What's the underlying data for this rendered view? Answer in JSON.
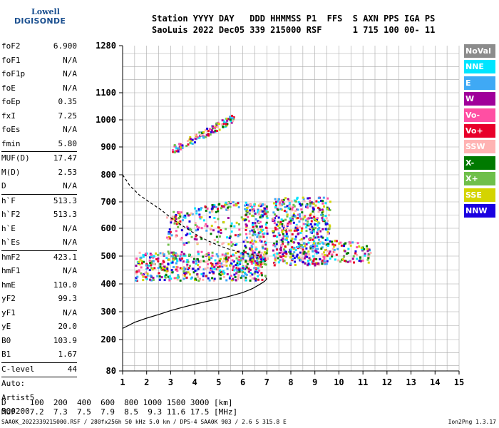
{
  "logo": {
    "line1": "Lowell",
    "line2": "DIGISONDE"
  },
  "header": {
    "line1": "Station YYYY DAY   DDD HHMMSS P1  FFS  S AXN PPS IGA PS",
    "line2": "SaoLuis 2022 Dec05 339 215000 RSF      1 715 100 00- 11"
  },
  "params_group1": [
    {
      "label": "foF2",
      "value": "6.900"
    },
    {
      "label": "foF1",
      "value": "N/A"
    },
    {
      "label": "foF1p",
      "value": "N/A"
    },
    {
      "label": "foE",
      "value": "N/A"
    },
    {
      "label": "foEp",
      "value": "0.35"
    },
    {
      "label": "fxI",
      "value": "7.25"
    },
    {
      "label": "foEs",
      "value": "N/A"
    },
    {
      "label": "fmin",
      "value": "5.80"
    }
  ],
  "params_group2": [
    {
      "label": "MUF(D)",
      "value": "17.47"
    },
    {
      "label": "M(D)",
      "value": "2.53"
    },
    {
      "label": "D",
      "value": "N/A"
    }
  ],
  "params_group3": [
    {
      "label": "h`F",
      "value": "513.3"
    },
    {
      "label": "h`F2",
      "value": "513.3"
    },
    {
      "label": "h`E",
      "value": "N/A"
    },
    {
      "label": "h`Es",
      "value": "N/A"
    }
  ],
  "params_group4": [
    {
      "label": "hmF2",
      "value": "423.1"
    },
    {
      "label": "hmF1",
      "value": "N/A"
    },
    {
      "label": "hmE",
      "value": "110.0"
    },
    {
      "label": "yF2",
      "value": "99.3"
    },
    {
      "label": "yF1",
      "value": "N/A"
    },
    {
      "label": "yE",
      "value": "20.0"
    },
    {
      "label": "B0",
      "value": "103.9"
    },
    {
      "label": "B1",
      "value": "1.67"
    }
  ],
  "params_group5": [
    {
      "label": "C-level",
      "value": "44"
    }
  ],
  "params_group6": [
    {
      "label": "Auto:",
      "value": ""
    },
    {
      "label": "Artist5",
      "value": ""
    },
    {
      "label": "500200",
      "value": ""
    }
  ],
  "legend": [
    {
      "label": "NoVal",
      "color": "#8c8c8c"
    },
    {
      "label": "NNE",
      "color": "#00e5ff"
    },
    {
      "label": "E",
      "color": "#3fa9f5"
    },
    {
      "label": "W",
      "color": "#a0009a"
    },
    {
      "label": "Vo-",
      "color": "#ff4fa3"
    },
    {
      "label": "Vo+",
      "color": "#e8002a"
    },
    {
      "label": "SSW",
      "color": "#ffb3b3"
    },
    {
      "label": "X-",
      "color": "#007a00"
    },
    {
      "label": "X+",
      "color": "#6fbf4a"
    },
    {
      "label": "SSE",
      "color": "#d4d400"
    },
    {
      "label": "NNW",
      "color": "#1a00e0"
    }
  ],
  "footer": {
    "line1": "D     100  200  400  600  800 1000 1500 3000 [km]",
    "line2": "MUF   7.2  7.3  7.5  7.9  8.5  9.3 11.6 17.5 [MHz]",
    "bottom": "SAA0K_2022339215000.RSF / 280fx256h 50 kHz 5.0 km / DPS-4 SAA0K 903 / 2.6 S 315.8 E",
    "version": "Ion2Png 1.3.17"
  },
  "chart_data": {
    "type": "scatter",
    "xlim": [
      1,
      15
    ],
    "ylim": [
      80,
      1280
    ],
    "x_ticks": [
      1,
      2,
      3,
      4,
      5,
      6,
      7,
      8,
      9,
      10,
      11,
      12,
      13,
      14,
      15
    ],
    "x_tick_labels": [
      "1",
      "2",
      "3",
      "4",
      "5",
      "6",
      "7",
      "8",
      "9",
      "10",
      "11",
      "12",
      "13",
      "14",
      "15"
    ],
    "y_ticks": [
      80,
      200,
      300,
      400,
      500,
      600,
      700,
      800,
      900,
      1000,
      1100,
      1280
    ],
    "y_tick_labels": [
      "80",
      "200",
      "300",
      "400",
      "500",
      "600",
      "700",
      "800",
      "900",
      "1000",
      "1100",
      "1280"
    ],
    "grid": true,
    "profile_curve": {
      "x": [
        1.0,
        1.5,
        2.0,
        2.5,
        3.0,
        3.5,
        4.0,
        4.5,
        5.0,
        5.5,
        6.0,
        6.4,
        6.7,
        6.9,
        7.0,
        6.95
      ],
      "y": [
        240,
        262,
        277,
        290,
        304,
        316,
        327,
        337,
        346,
        357,
        369,
        383,
        398,
        409,
        418,
        423
      ]
    },
    "muf_curve": {
      "x": [
        1.0,
        1.3,
        1.7,
        2.1,
        2.6,
        3.0,
        3.4,
        3.8,
        4.2,
        4.6,
        5.0,
        5.4,
        5.8,
        6.2,
        6.5,
        6.7
      ],
      "y": [
        800,
        760,
        725,
        700,
        670,
        640,
        615,
        592,
        570,
        553,
        538,
        526,
        516,
        508,
        503,
        500
      ]
    },
    "echo_regions": [
      {
        "x": [
          1.5,
          6.9
        ],
        "y": [
          415,
          520
        ],
        "density": 520
      },
      {
        "x": [
          3.0,
          5.6
        ],
        "y": [
          890,
          1010
        ],
        "density": 120,
        "trend": "diagonal"
      },
      {
        "x": [
          3.0,
          6.1
        ],
        "y": [
          650,
          700
        ],
        "density": 80,
        "trend": "diagonal"
      },
      {
        "x": [
          6.0,
          7.0
        ],
        "y": [
          470,
          700
        ],
        "density": 220
      },
      {
        "x": [
          7.2,
          9.6
        ],
        "y": [
          470,
          720
        ],
        "density": 520
      },
      {
        "x": [
          9.3,
          11.3
        ],
        "y": [
          480,
          560
        ],
        "density": 90
      },
      {
        "x": [
          2.8,
          6.0
        ],
        "y": [
          540,
          650
        ],
        "density": 120
      }
    ]
  }
}
